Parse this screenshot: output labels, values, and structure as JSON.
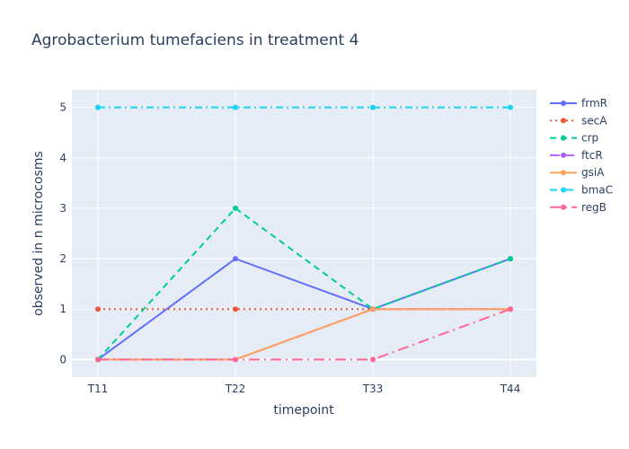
{
  "chart_data": {
    "type": "line",
    "title": "Agrobacterium tumefaciens in treatment 4",
    "xlabel": "timepoint",
    "ylabel": "observed in n microcosms",
    "categories": [
      "T11",
      "T22",
      "T33",
      "T44"
    ],
    "yticks": [
      0,
      1,
      2,
      3,
      4,
      5
    ],
    "ylim": [
      -0.35,
      5.35
    ],
    "grid": true,
    "legend_position": "right",
    "series": [
      {
        "name": "frmR",
        "values": [
          0,
          2,
          1,
          2
        ],
        "color": "#636efa",
        "dash": "solid"
      },
      {
        "name": "secA",
        "values": [
          1,
          1,
          1,
          1
        ],
        "color": "#ef553b",
        "dash": "dot"
      },
      {
        "name": "crp",
        "values": [
          0,
          3,
          1,
          2
        ],
        "color": "#00cc96",
        "dash": "dash"
      },
      {
        "name": "ftcR",
        "values": [
          0,
          0,
          1,
          1
        ],
        "color": "#ab63fa",
        "dash": "longdash"
      },
      {
        "name": "gsiA",
        "values": [
          0,
          0,
          1,
          1
        ],
        "color": "#ffa15a",
        "dash": "solid"
      },
      {
        "name": "bmaC",
        "values": [
          5,
          5,
          5,
          5
        ],
        "color": "#19d3f3",
        "dash": "dashdot"
      },
      {
        "name": "regB",
        "values": [
          0,
          0,
          0,
          1
        ],
        "color": "#ff6692",
        "dash": "longdashdot"
      }
    ]
  }
}
